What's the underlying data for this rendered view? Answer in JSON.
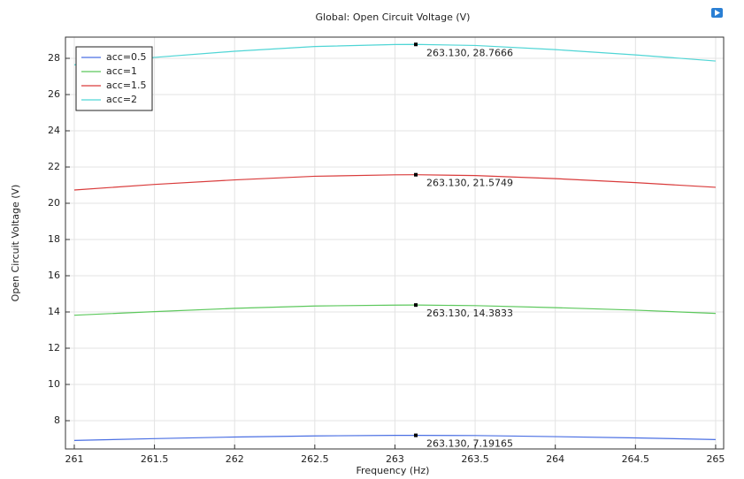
{
  "chart_data": {
    "type": "line",
    "title": "Global: Open Circuit Voltage (V)",
    "xlabel": "Frequency (Hz)",
    "ylabel": "Open Circuit Voltage (V)",
    "x": [
      261,
      261.5,
      262,
      262.5,
      263,
      263.13,
      263.5,
      264,
      264.5,
      265
    ],
    "series": [
      {
        "name": "acc=0.5",
        "color": "#4a6fe3",
        "values": [
          6.91,
          7.01,
          7.1,
          7.16,
          7.19,
          7.19165,
          7.18,
          7.12,
          7.05,
          6.96
        ]
      },
      {
        "name": "acc=1",
        "color": "#5cc85c",
        "values": [
          13.82,
          14.02,
          14.2,
          14.33,
          14.38,
          14.3833,
          14.35,
          14.24,
          14.1,
          13.92
        ]
      },
      {
        "name": "acc=1.5",
        "color": "#d93b3b",
        "values": [
          20.73,
          21.04,
          21.29,
          21.49,
          21.57,
          21.5749,
          21.53,
          21.36,
          21.14,
          20.88
        ]
      },
      {
        "name": "acc=2",
        "color": "#4fd5d5",
        "values": [
          27.64,
          28.05,
          28.39,
          28.65,
          28.76,
          28.7666,
          28.71,
          28.48,
          28.19,
          27.85
        ]
      }
    ],
    "annotations": [
      {
        "x": 263.13,
        "y": 28.7666,
        "text": "263.130, 28.7666"
      },
      {
        "x": 263.13,
        "y": 21.5749,
        "text": "263.130, 21.5749"
      },
      {
        "x": 263.13,
        "y": 14.3833,
        "text": "263.130, 14.3833"
      },
      {
        "x": 263.13,
        "y": 7.19165,
        "text": "263.130, 7.19165"
      }
    ],
    "xlim": [
      260.945,
      265.05
    ],
    "xticks": [
      261,
      261.5,
      262,
      262.5,
      263,
      263.5,
      264,
      264.5,
      265
    ],
    "ylim": [
      6.44,
      29.17
    ],
    "yticks": [
      8,
      10,
      12,
      14,
      16,
      18,
      20,
      22,
      24,
      26,
      28
    ],
    "grid": true,
    "legend": "upper-left"
  }
}
